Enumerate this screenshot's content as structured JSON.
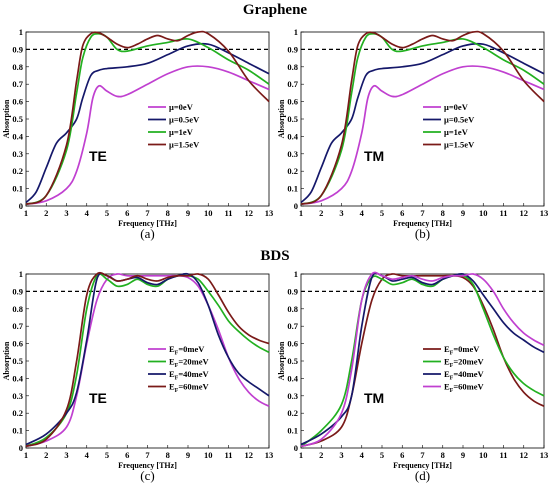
{
  "titles": {
    "graphene": "Graphene",
    "bds": "BDS"
  },
  "chart_data": [
    {
      "type": "line",
      "panel_label": "(a)",
      "annotation": "TE",
      "xlabel": "Frequency [THz]",
      "ylabel": "Absorption",
      "xlim": [
        1,
        13
      ],
      "ylim": [
        0,
        1
      ],
      "xticks": [
        "1",
        "2",
        "3",
        "4",
        "5",
        "6",
        "7",
        "8",
        "9",
        "10",
        "11",
        "12",
        "13"
      ],
      "yticks": [
        "0",
        "0.1",
        "0.2",
        "0.3",
        "0.4",
        "0.5",
        "0.6",
        "0.7",
        "0.8",
        "0.9",
        "1"
      ],
      "reference_line": 0.9,
      "legend": {
        "placement": "center-right",
        "entries": [
          {
            "prefix": "μ",
            "sub": "",
            "suffix": "=0eV"
          },
          {
            "prefix": "μ",
            "sub": "",
            "suffix": "=0.5eV"
          },
          {
            "prefix": "μ",
            "sub": "",
            "suffix": "=1eV"
          },
          {
            "prefix": "μ",
            "sub": "",
            "suffix": "=1.5eV"
          }
        ]
      },
      "series": [
        {
          "color": "#c040d0",
          "x": [
            1,
            2,
            3,
            3.5,
            4,
            4.3,
            4.6,
            5,
            5.5,
            6,
            7,
            8,
            9,
            10,
            11,
            12,
            13
          ],
          "y": [
            0.01,
            0.03,
            0.1,
            0.2,
            0.42,
            0.62,
            0.69,
            0.66,
            0.63,
            0.64,
            0.7,
            0.76,
            0.8,
            0.8,
            0.77,
            0.72,
            0.67
          ]
        },
        {
          "color": "#15186a",
          "x": [
            1,
            1.5,
            2,
            2.5,
            3,
            3.5,
            3.8,
            4.2,
            4.6,
            5,
            6,
            7,
            8,
            9,
            10,
            11,
            12,
            13
          ],
          "y": [
            0.02,
            0.08,
            0.22,
            0.36,
            0.42,
            0.5,
            0.62,
            0.75,
            0.78,
            0.79,
            0.8,
            0.82,
            0.87,
            0.92,
            0.93,
            0.88,
            0.82,
            0.76
          ]
        },
        {
          "color": "#22b020",
          "x": [
            1,
            2,
            3,
            3.5,
            3.8,
            4.2,
            4.6,
            5,
            5.5,
            6,
            7,
            8,
            9,
            10,
            11,
            12,
            13
          ],
          "y": [
            0.01,
            0.06,
            0.32,
            0.65,
            0.85,
            0.97,
            0.99,
            0.97,
            0.9,
            0.89,
            0.92,
            0.94,
            0.96,
            0.91,
            0.84,
            0.78,
            0.7
          ]
        },
        {
          "color": "#7a1a18",
          "x": [
            1,
            2,
            3,
            3.5,
            3.8,
            4.2,
            4.6,
            5,
            5.5,
            6,
            6.5,
            7,
            7.5,
            8,
            8.5,
            9,
            9.5,
            10,
            11,
            12,
            13
          ],
          "y": [
            0.01,
            0.06,
            0.35,
            0.72,
            0.92,
            0.99,
            0.995,
            0.97,
            0.93,
            0.91,
            0.93,
            0.96,
            0.98,
            0.96,
            0.95,
            0.98,
            1,
            0.99,
            0.89,
            0.72,
            0.6
          ]
        }
      ]
    },
    {
      "type": "line",
      "panel_label": "(b)",
      "annotation": "TM",
      "xlabel": "Frequency [THz]",
      "ylabel": "Absorption",
      "xlim": [
        1,
        13
      ],
      "ylim": [
        0,
        1
      ],
      "xticks": [
        "1",
        "2",
        "3",
        "4",
        "5",
        "6",
        "7",
        "8",
        "9",
        "10",
        "11",
        "12",
        "13"
      ],
      "yticks": [
        "0",
        "0.1",
        "0.2",
        "0.3",
        "0.4",
        "0.5",
        "0.6",
        "0.7",
        "0.8",
        "0.9",
        "1"
      ],
      "reference_line": 0.9,
      "legend": {
        "placement": "center-right",
        "entries": [
          {
            "prefix": "μ",
            "sub": "",
            "suffix": "=0eV"
          },
          {
            "prefix": "μ",
            "sub": "",
            "suffix": "=0.5eV"
          },
          {
            "prefix": "μ",
            "sub": "",
            "suffix": "=1eV"
          },
          {
            "prefix": "μ",
            "sub": "",
            "suffix": "=1.5eV"
          }
        ]
      },
      "series": [
        {
          "color": "#c040d0",
          "x": [
            1,
            2,
            3,
            3.5,
            4,
            4.3,
            4.6,
            5,
            5.5,
            6,
            7,
            8,
            9,
            10,
            11,
            12,
            13
          ],
          "y": [
            0.01,
            0.03,
            0.1,
            0.2,
            0.42,
            0.62,
            0.69,
            0.66,
            0.63,
            0.64,
            0.7,
            0.76,
            0.8,
            0.8,
            0.77,
            0.72,
            0.67
          ]
        },
        {
          "color": "#15186a",
          "x": [
            1,
            1.5,
            2,
            2.5,
            3,
            3.5,
            3.8,
            4.2,
            4.6,
            5,
            6,
            7,
            8,
            9,
            10,
            11,
            12,
            13
          ],
          "y": [
            0.02,
            0.08,
            0.22,
            0.36,
            0.42,
            0.5,
            0.62,
            0.75,
            0.78,
            0.79,
            0.8,
            0.82,
            0.87,
            0.92,
            0.93,
            0.88,
            0.82,
            0.76
          ]
        },
        {
          "color": "#22b020",
          "x": [
            1,
            2,
            3,
            3.5,
            3.8,
            4.2,
            4.6,
            5,
            5.5,
            6,
            7,
            8,
            9,
            10,
            11,
            12,
            13
          ],
          "y": [
            0.01,
            0.06,
            0.32,
            0.65,
            0.85,
            0.97,
            0.99,
            0.97,
            0.9,
            0.89,
            0.92,
            0.94,
            0.96,
            0.91,
            0.84,
            0.78,
            0.7
          ]
        },
        {
          "color": "#7a1a18",
          "x": [
            1,
            2,
            3,
            3.5,
            3.8,
            4.2,
            4.6,
            5,
            5.5,
            6,
            6.5,
            7,
            7.5,
            8,
            8.5,
            9,
            9.5,
            10,
            11,
            12,
            13
          ],
          "y": [
            0.01,
            0.06,
            0.35,
            0.72,
            0.92,
            0.99,
            0.995,
            0.97,
            0.93,
            0.91,
            0.93,
            0.96,
            0.98,
            0.96,
            0.95,
            0.98,
            1,
            0.99,
            0.89,
            0.72,
            0.6
          ]
        }
      ]
    },
    {
      "type": "line",
      "panel_label": "(c)",
      "annotation": "TE",
      "xlabel": "Frequency [THz]",
      "ylabel": "Absorption",
      "xlim": [
        1,
        13
      ],
      "ylim": [
        0,
        1
      ],
      "xticks": [
        "1",
        "2",
        "3",
        "4",
        "5",
        "6",
        "7",
        "8",
        "9",
        "10",
        "11",
        "12",
        "13"
      ],
      "yticks": [
        "0",
        "0.1",
        "0.2",
        "0.3",
        "0.4",
        "0.5",
        "0.6",
        "0.7",
        "0.8",
        "0.9",
        "1"
      ],
      "reference_line": 0.9,
      "legend": {
        "placement": "center-right",
        "entries": [
          {
            "prefix": "E",
            "sub": "F",
            "suffix": "=0meV"
          },
          {
            "prefix": "E",
            "sub": "F",
            "suffix": "=20meV"
          },
          {
            "prefix": "E",
            "sub": "F",
            "suffix": "=40meV"
          },
          {
            "prefix": "E",
            "sub": "F",
            "suffix": "=60meV"
          }
        ]
      },
      "series": [
        {
          "color": "#c040d0",
          "x": [
            1,
            2,
            3,
            3.5,
            4,
            4.5,
            5,
            5.5,
            6,
            7,
            8,
            8.5,
            9,
            9.5,
            10,
            10.5,
            11,
            11.5,
            12,
            12.5,
            13
          ],
          "y": [
            0.01,
            0.04,
            0.12,
            0.3,
            0.6,
            0.85,
            0.97,
            1,
            0.99,
            0.99,
            0.99,
            0.99,
            0.98,
            0.93,
            0.82,
            0.68,
            0.52,
            0.4,
            0.32,
            0.27,
            0.24
          ]
        },
        {
          "color": "#22b020",
          "x": [
            1,
            2,
            3,
            3.5,
            4,
            4.5,
            5,
            5.5,
            6,
            6.5,
            7,
            7.5,
            8,
            8.5,
            9,
            9.5,
            10,
            10.5,
            11,
            11.5,
            12,
            12.5,
            13
          ],
          "y": [
            0.01,
            0.06,
            0.2,
            0.42,
            0.8,
            0.99,
            0.97,
            0.93,
            0.94,
            0.97,
            0.94,
            0.93,
            0.97,
            0.99,
            0.99,
            0.97,
            0.9,
            0.82,
            0.73,
            0.67,
            0.62,
            0.58,
            0.55
          ]
        },
        {
          "color": "#15186a",
          "x": [
            1,
            2,
            3,
            3.5,
            4,
            4.5,
            5,
            5.5,
            6,
            6.5,
            7,
            7.5,
            8,
            8.5,
            9,
            9.5,
            10,
            10.5,
            11,
            11.5,
            12,
            12.5,
            13
          ],
          "y": [
            0.02,
            0.08,
            0.2,
            0.32,
            0.62,
            0.97,
            0.99,
            0.96,
            0.97,
            0.98,
            0.95,
            0.94,
            0.97,
            0.99,
            1,
            0.95,
            0.82,
            0.65,
            0.52,
            0.43,
            0.38,
            0.34,
            0.3
          ]
        },
        {
          "color": "#7a1a18",
          "x": [
            1,
            2,
            3,
            3.5,
            4,
            4.5,
            5,
            5.5,
            6,
            6.5,
            7,
            7.5,
            8,
            8.5,
            9,
            9.5,
            10,
            10.5,
            11,
            11.5,
            12,
            12.5,
            13
          ],
          "y": [
            0.01,
            0.05,
            0.22,
            0.5,
            0.88,
            1,
            0.99,
            0.96,
            0.97,
            0.99,
            0.97,
            0.96,
            0.98,
            0.99,
            0.99,
            1,
            0.97,
            0.88,
            0.78,
            0.7,
            0.65,
            0.62,
            0.6
          ]
        }
      ]
    },
    {
      "type": "line",
      "panel_label": "(d)",
      "annotation": "TM",
      "xlabel": "Frequency [THz]",
      "ylabel": "Absorption",
      "xlim": [
        1,
        13
      ],
      "ylim": [
        0,
        1
      ],
      "xticks": [
        "1",
        "2",
        "3",
        "4",
        "5",
        "6",
        "7",
        "8",
        "9",
        "10",
        "11",
        "12",
        "13"
      ],
      "yticks": [
        "0",
        "0.1",
        "0.2",
        "0.3",
        "0.4",
        "0.5",
        "0.6",
        "0.7",
        "0.8",
        "0.9",
        "1"
      ],
      "reference_line": 0.9,
      "legend": {
        "placement": "center-right",
        "entries": [
          {
            "prefix": "E",
            "sub": "F",
            "suffix": "=0meV"
          },
          {
            "prefix": "E",
            "sub": "F",
            "suffix": "=20meV"
          },
          {
            "prefix": "E",
            "sub": "F",
            "suffix": "=40meV"
          },
          {
            "prefix": "E",
            "sub": "F",
            "suffix": "=60meV"
          }
        ]
      },
      "series": [
        {
          "color": "#7a1a18",
          "x": [
            1,
            2,
            3,
            3.5,
            4,
            4.5,
            5,
            5.5,
            6,
            7,
            8,
            8.5,
            9,
            9.5,
            10,
            10.5,
            11,
            11.5,
            12,
            12.5,
            13
          ],
          "y": [
            0.01,
            0.04,
            0.12,
            0.3,
            0.6,
            0.85,
            0.97,
            1,
            0.99,
            0.99,
            0.99,
            0.99,
            0.98,
            0.93,
            0.82,
            0.68,
            0.52,
            0.4,
            0.32,
            0.27,
            0.24
          ]
        },
        {
          "color": "#22b020",
          "x": [
            1,
            2,
            3,
            3.5,
            4,
            4.5,
            5,
            5.5,
            6,
            6.5,
            7,
            7.5,
            8,
            8.5,
            9,
            9.5,
            10,
            10.5,
            11,
            11.5,
            12,
            12.5,
            13
          ],
          "y": [
            0.01,
            0.1,
            0.25,
            0.5,
            0.85,
            0.98,
            0.97,
            0.94,
            0.95,
            0.97,
            0.94,
            0.93,
            0.97,
            0.99,
            0.99,
            0.94,
            0.8,
            0.65,
            0.52,
            0.43,
            0.37,
            0.33,
            0.3
          ]
        },
        {
          "color": "#15186a",
          "x": [
            1,
            2,
            3,
            3.5,
            4,
            4.5,
            5,
            5.5,
            6,
            6.5,
            7,
            7.5,
            8,
            8.5,
            9,
            9.5,
            10,
            10.5,
            11,
            11.5,
            12,
            12.5,
            13
          ],
          "y": [
            0.02,
            0.08,
            0.18,
            0.3,
            0.7,
            0.98,
            0.99,
            0.96,
            0.97,
            0.98,
            0.95,
            0.94,
            0.97,
            0.99,
            1,
            0.96,
            0.88,
            0.8,
            0.72,
            0.66,
            0.62,
            0.58,
            0.55
          ]
        },
        {
          "color": "#c040d0",
          "x": [
            1,
            2,
            3,
            3.5,
            4,
            4.5,
            5,
            5.5,
            6,
            6.5,
            7,
            7.5,
            8,
            8.5,
            9,
            9.5,
            10,
            10.5,
            11,
            11.5,
            12,
            12.5,
            13
          ],
          "y": [
            0.01,
            0.05,
            0.2,
            0.45,
            0.85,
            1,
            0.99,
            0.97,
            0.98,
            0.99,
            0.97,
            0.96,
            0.98,
            0.99,
            0.99,
            1,
            0.97,
            0.9,
            0.8,
            0.72,
            0.66,
            0.62,
            0.59
          ]
        }
      ]
    }
  ]
}
